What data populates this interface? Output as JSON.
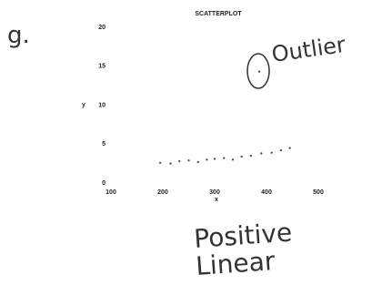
{
  "chart_data": {
    "type": "scatter",
    "title": "SCATTERPLOT",
    "xlabel": "x",
    "ylabel": "y",
    "x": [
      195,
      215,
      232,
      250,
      268,
      285,
      300,
      318,
      335,
      352,
      370,
      390,
      410,
      428,
      445,
      386
    ],
    "values": [
      2.6,
      2.5,
      2.8,
      2.9,
      2.7,
      3.0,
      3.1,
      3.2,
      3.0,
      3.4,
      3.5,
      3.8,
      3.9,
      4.2,
      4.5,
      14.3
    ],
    "color": "#555555",
    "xlim": [
      100,
      500
    ],
    "xticks": [
      100,
      200,
      300,
      400,
      500
    ],
    "ylim": [
      0,
      20
    ],
    "yticks": [
      0,
      5,
      10,
      15,
      20
    ],
    "grid": false,
    "annotations": [
      "g.",
      "Outlier",
      "Positive",
      "Linear"
    ]
  }
}
